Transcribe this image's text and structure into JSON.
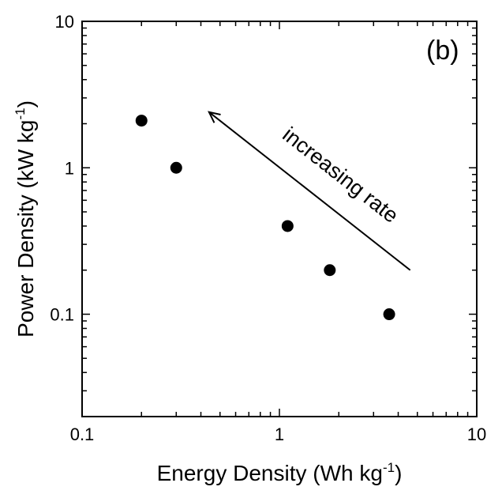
{
  "chart_data": {
    "type": "scatter",
    "title": "",
    "xlabel": "Energy Density (Wh kg",
    "xlabel_sup": "-1",
    "xlabel_close": ")",
    "ylabel": "Power Density (kW kg",
    "ylabel_sup": "-1",
    "ylabel_close": ")",
    "x_scale": "log",
    "y_scale": "log",
    "xlim": [
      0.1,
      10
    ],
    "ylim": [
      0.02,
      10
    ],
    "x_ticks": [
      {
        "value": 0.1,
        "label": "0.1"
      },
      {
        "value": 1,
        "label": "1"
      },
      {
        "value": 10,
        "label": "10"
      }
    ],
    "y_ticks": [
      {
        "value": 0.1,
        "label": "0.1"
      },
      {
        "value": 1,
        "label": "1"
      },
      {
        "value": 10,
        "label": "10"
      }
    ],
    "grid": false,
    "panel_label": "(b)",
    "series": [
      {
        "points": [
          {
            "x": 0.2,
            "y": 2.1
          },
          {
            "x": 0.3,
            "y": 1.0
          },
          {
            "x": 1.1,
            "y": 0.4
          },
          {
            "x": 1.8,
            "y": 0.2
          },
          {
            "x": 3.6,
            "y": 0.1
          }
        ],
        "color": "#000000",
        "marker": "filled-circle"
      }
    ],
    "annotations": [
      {
        "text": "increasing rate",
        "arrow_from": {
          "x": 4.6,
          "y": 0.2
        },
        "arrow_to": {
          "x": 0.44,
          "y": 2.4
        }
      }
    ]
  }
}
